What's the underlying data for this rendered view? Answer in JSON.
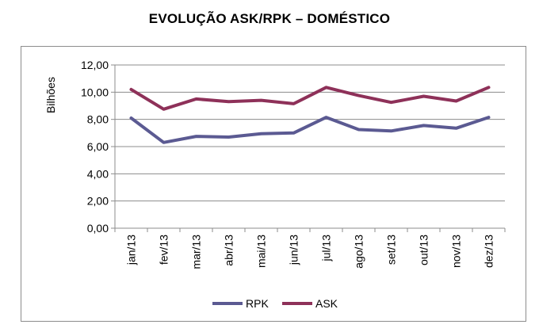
{
  "chart_data": {
    "type": "line",
    "title": "EVOLUÇÃO ASK/RPK – DOMÉSTICO",
    "ylabel": "Bilhões",
    "xlabel": "",
    "ylim": [
      0,
      12
    ],
    "y_ticks": [
      "0,00",
      "2,00",
      "4,00",
      "6,00",
      "8,00",
      "10,00",
      "12,00"
    ],
    "categories": [
      "jan/13",
      "fev/13",
      "mar/13",
      "abr/13",
      "mai/13",
      "jun/13",
      "jul/13",
      "ago/13",
      "set/13",
      "out/13",
      "nov/13",
      "dez/13"
    ],
    "series": [
      {
        "name": "RPK",
        "color": "#5b5a92",
        "values": [
          8.1,
          6.3,
          6.75,
          6.7,
          6.95,
          7.0,
          8.15,
          7.25,
          7.15,
          7.55,
          7.35,
          8.15
        ]
      },
      {
        "name": "ASK",
        "color": "#8e3159",
        "values": [
          10.2,
          8.75,
          9.5,
          9.3,
          9.4,
          9.15,
          10.35,
          9.75,
          9.25,
          9.7,
          9.35,
          10.35
        ]
      }
    ],
    "grid": true,
    "legend_position": "bottom"
  }
}
